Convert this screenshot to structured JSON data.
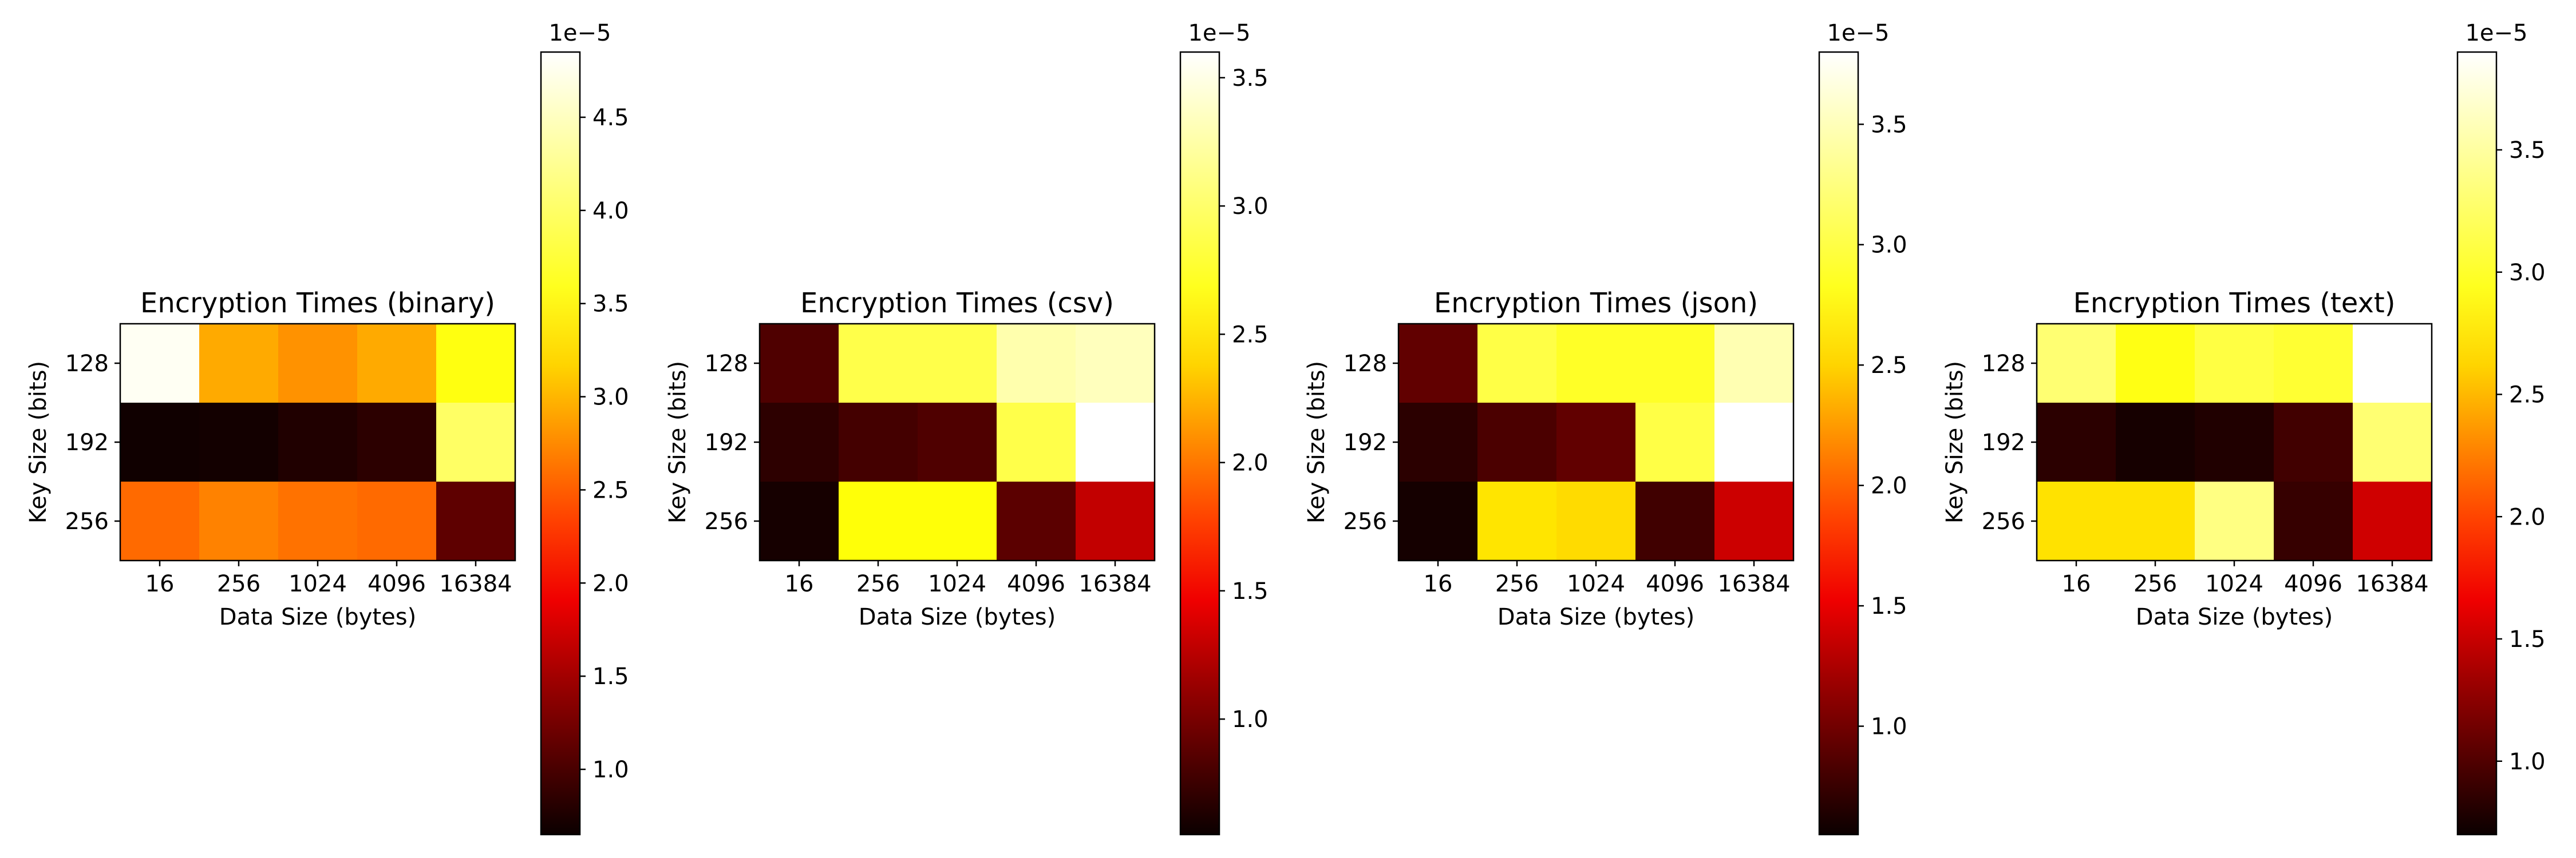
{
  "chart_data": [
    {
      "type": "heatmap",
      "title": "Encryption Times (binary)",
      "xlabel": "Data Size (bytes)",
      "ylabel": "Key Size (bits)",
      "x_categories": [
        "16",
        "256",
        "1024",
        "4096",
        "16384"
      ],
      "y_categories": [
        "128",
        "192",
        "256"
      ],
      "values": [
        [
          4.8e-05,
          3.25e-05,
          3.1e-05,
          3.25e-05,
          3.85e-05
        ],
        [
          6.8e-06,
          7e-06,
          7.8e-06,
          8.5e-06,
          4.2e-05
        ],
        [
          2.85e-05,
          3e-05,
          2.9e-05,
          2.85e-05,
          1.15e-05
        ]
      ],
      "colormap": "hot",
      "colorbar": {
        "min": 6.5e-06,
        "max": 4.85e-05,
        "offset_label": "1e−5",
        "ticks": [
          "1.0",
          "1.5",
          "2.0",
          "2.5",
          "3.0",
          "3.5",
          "4.0",
          "4.5"
        ]
      }
    },
    {
      "type": "heatmap",
      "title": "Encryption Times (csv)",
      "xlabel": "Data Size (bytes)",
      "ylabel": "Key Size (bits)",
      "x_categories": [
        "16",
        "256",
        "1024",
        "4096",
        "16384"
      ],
      "y_categories": [
        "128",
        "192",
        "256"
      ],
      "values": [
        [
          8.5e-06,
          3.05e-05,
          3.05e-05,
          3.35e-05,
          3.4e-05
        ],
        [
          7e-06,
          8e-06,
          8.5e-06,
          3.05e-05,
          3.6e-05
        ],
        [
          6e-06,
          2.85e-05,
          2.85e-05,
          9e-06,
          1.35e-05
        ]
      ],
      "colormap": "hot",
      "colorbar": {
        "min": 5.5e-06,
        "max": 3.6e-05,
        "offset_label": "1e−5",
        "ticks": [
          "1.0",
          "1.5",
          "2.0",
          "2.5",
          "3.0",
          "3.5"
        ]
      }
    },
    {
      "type": "heatmap",
      "title": "Encryption Times (json)",
      "xlabel": "Data Size (bytes)",
      "ylabel": "Key Size (bits)",
      "x_categories": [
        "16",
        "256",
        "1024",
        "4096",
        "16384"
      ],
      "y_categories": [
        "128",
        "192",
        "256"
      ],
      "values": [
        [
          9.5e-06,
          3.2e-05,
          3.1e-05,
          3.1e-05,
          3.55e-05
        ],
        [
          7e-06,
          8.5e-06,
          9.5e-06,
          3.2e-05,
          3.8e-05
        ],
        [
          6e-06,
          2.85e-05,
          2.8e-05,
          8e-06,
          1.45e-05
        ]
      ],
      "colormap": "hot",
      "colorbar": {
        "min": 5.5e-06,
        "max": 3.8e-05,
        "offset_label": "1e−5",
        "ticks": [
          "1.0",
          "1.5",
          "2.0",
          "2.5",
          "3.0",
          "3.5"
        ]
      }
    },
    {
      "type": "heatmap",
      "title": "Encryption Times (text)",
      "xlabel": "Data Size (bytes)",
      "ylabel": "Key Size (bits)",
      "x_categories": [
        "16",
        "256",
        "1024",
        "4096",
        "16384"
      ],
      "y_categories": [
        "128",
        "192",
        "256"
      ],
      "values": [
        [
          3.45e-05,
          3.15e-05,
          3.3e-05,
          3.25e-05,
          3.9e-05
        ],
        [
          8.5e-06,
          7.5e-06,
          8e-06,
          9.5e-06,
          3.45e-05
        ],
        [
          2.95e-05,
          2.95e-05,
          3.5e-05,
          9e-06,
          1.6e-05
        ]
      ],
      "colormap": "hot",
      "colorbar": {
        "min": 7e-06,
        "max": 3.9e-05,
        "offset_label": "1e−5",
        "ticks": [
          "1.0",
          "1.5",
          "2.0",
          "2.5",
          "3.0",
          "3.5"
        ]
      }
    }
  ]
}
